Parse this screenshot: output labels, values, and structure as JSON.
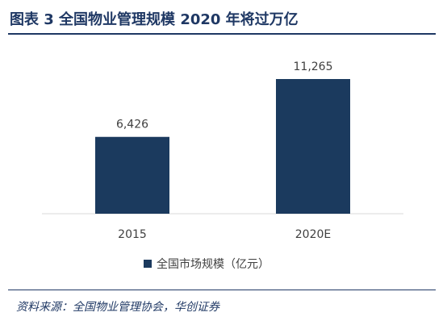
{
  "title": "图表 3 全国物业管理规模 2020 年将过万亿",
  "source": "资料来源：全国物业管理协会，华创证券",
  "colors": {
    "bar": "#1b3a5e",
    "title": "#1f3864",
    "axis": "#d9d9d9",
    "text": "#404040"
  },
  "chart_data": {
    "type": "bar",
    "title": "",
    "xlabel": "",
    "ylabel": "",
    "categories": [
      "2015",
      "2020E"
    ],
    "series": [
      {
        "name": "全国市场规模（亿元）",
        "values": [
          6426,
          11265
        ]
      }
    ],
    "data_labels": [
      "6,426",
      "11,265"
    ],
    "ylim": [
      0,
      13000
    ],
    "grid": false,
    "legend_position": "bottom"
  }
}
